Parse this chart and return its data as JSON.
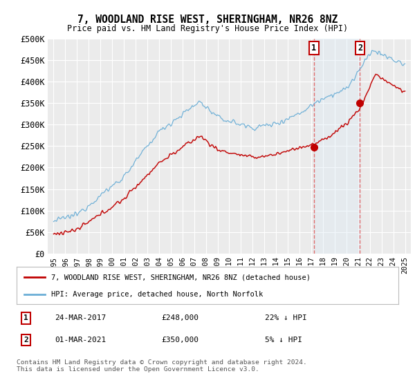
{
  "title": "7, WOODLAND RISE WEST, SHERINGHAM, NR26 8NZ",
  "subtitle": "Price paid vs. HM Land Registry's House Price Index (HPI)",
  "ylim": [
    0,
    500000
  ],
  "yticks": [
    0,
    50000,
    100000,
    150000,
    200000,
    250000,
    300000,
    350000,
    400000,
    450000,
    500000
  ],
  "ytick_labels": [
    "£0",
    "£50K",
    "£100K",
    "£150K",
    "£200K",
    "£250K",
    "£300K",
    "£350K",
    "£400K",
    "£450K",
    "£500K"
  ],
  "hpi_color": "#6baed6",
  "price_color": "#c00000",
  "vline_color": "#e06060",
  "shade_color": "#daeaf6",
  "bg_color": "#ffffff",
  "plot_bg_color": "#f0f0f0",
  "legend_label_price": "7, WOODLAND RISE WEST, SHERINGHAM, NR26 8NZ (detached house)",
  "legend_label_hpi": "HPI: Average price, detached house, North Norfolk",
  "annotation1_date": "24-MAR-2017",
  "annotation1_price": "£248,000",
  "annotation1_hpi": "22% ↓ HPI",
  "annotation2_date": "01-MAR-2021",
  "annotation2_price": "£350,000",
  "annotation2_hpi": "5% ↓ HPI",
  "footnote": "Contains HM Land Registry data © Crown copyright and database right 2024.\nThis data is licensed under the Open Government Licence v3.0.",
  "x_start_year": 1995,
  "x_end_year": 2025,
  "transaction1_year": 2017.22,
  "transaction2_year": 2021.16,
  "transaction1_value": 248000,
  "transaction2_value": 350000
}
